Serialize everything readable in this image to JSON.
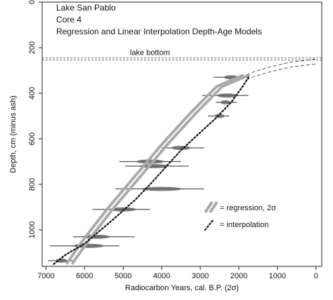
{
  "chart_data": {
    "type": "line",
    "title_lines": [
      "Lake San Pablo",
      "Core 4",
      "Regression and Linear Interpolation Depth-Age Models"
    ],
    "xlabel": "Radiocarbon Years, cal. B.P. (2σ)",
    "ylabel": "Depth, cm (minus ash)",
    "xlim": [
      7100,
      -150
    ],
    "ylim": [
      0,
      1160
    ],
    "x_reversed": true,
    "y_reversed": true,
    "x_ticks": [
      7000,
      6000,
      5000,
      4000,
      3000,
      2000,
      1000,
      0
    ],
    "y_ticks": [
      0,
      200,
      400,
      600,
      800,
      1000
    ],
    "annotation": {
      "text": "lake bottom",
      "depth": 250
    },
    "legend": {
      "position": "right",
      "entries": [
        {
          "label": "= regression, 2σ",
          "style": "double-gray"
        },
        {
          "label": "= interpolation",
          "style": "dotted-black"
        }
      ]
    },
    "dates": [
      {
        "age": 2200,
        "depth": 330,
        "range": [
          2650,
          1800
        ]
      },
      {
        "age": 2300,
        "depth": 410,
        "range": [
          2950,
          1750
        ]
      },
      {
        "age": 2350,
        "depth": 440,
        "range": [
          2600,
          2050
        ]
      },
      {
        "age": 2500,
        "depth": 500,
        "range": [
          2800,
          2250
        ]
      },
      {
        "age": 3500,
        "depth": 640,
        "range": [
          4000,
          2900
        ]
      },
      {
        "age": 4300,
        "depth": 700,
        "range": [
          5100,
          3500
        ]
      },
      {
        "age": 4200,
        "depth": 720,
        "range": [
          4950,
          3300
        ]
      },
      {
        "age": 4000,
        "depth": 820,
        "range": [
          5200,
          2900
        ]
      },
      {
        "age": 5000,
        "depth": 910,
        "range": [
          5800,
          4300
        ]
      },
      {
        "age": 5700,
        "depth": 1030,
        "range": [
          6300,
          4700
        ]
      },
      {
        "age": 5900,
        "depth": 1070,
        "range": [
          6900,
          5100
        ]
      },
      {
        "age": 6600,
        "depth": 1135,
        "range": [
          6950,
          6300
        ]
      }
    ],
    "series": [
      {
        "name": "regression",
        "style": "double-gray",
        "x": [
          6400,
          5900,
          5300,
          4600,
          3900,
          3200,
          2500,
          1800
        ],
        "y": [
          1150,
          1030,
          900,
          760,
          620,
          490,
          370,
          320
        ]
      },
      {
        "name": "interpolation",
        "style": "dotted-black",
        "x": [
          6800,
          6500,
          6000,
          5300,
          4700,
          4300,
          3500,
          2600,
          2200,
          1900,
          1750
        ],
        "y": [
          1150,
          1110,
          1060,
          960,
          870,
          800,
          650,
          510,
          440,
          370,
          330
        ]
      },
      {
        "name": "extrapolation",
        "style": "dashed-thin",
        "x": [
          1800,
          1600,
          1200,
          700,
          0
        ],
        "y": [
          320,
          305,
          285,
          265,
          250
        ]
      }
    ]
  }
}
